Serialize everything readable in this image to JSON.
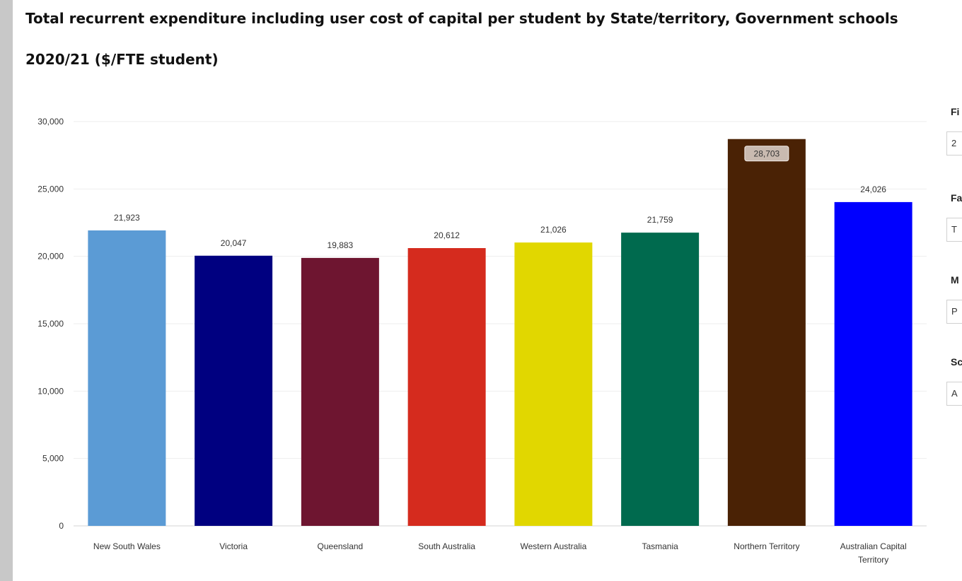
{
  "title_line1": "Total recurrent expenditure including user cost of capital per student by State/territory, Government schools",
  "title_line2": "2020/21 ($/FTE student)",
  "chart_data": {
    "type": "bar",
    "title": "Total recurrent expenditure including user cost of capital per student by State/territory, Government schools 2020/21 ($/FTE student)",
    "xlabel": "",
    "ylabel": "",
    "categories": [
      [
        "New South Wales"
      ],
      [
        "Victoria"
      ],
      [
        "Queensland"
      ],
      [
        "South Australia"
      ],
      [
        "Western Australia"
      ],
      [
        "Tasmania"
      ],
      [
        "Northern Territory"
      ],
      [
        "Australian Capital",
        "Territory"
      ]
    ],
    "values": [
      21923,
      20047,
      19883,
      20612,
      21026,
      21759,
      28703,
      24026
    ],
    "data_labels": [
      "21,923",
      "20,047",
      "19,883",
      "20,612",
      "21,026",
      "21,759",
      "28,703",
      "24,026"
    ],
    "colors": [
      "#5b9bd5",
      "#000080",
      "#6e1530",
      "#d52b1e",
      "#e1d700",
      "#006a4e",
      "#4a2205",
      "#0000ff"
    ],
    "highlighted_index": 6,
    "ylim": [
      0,
      30000
    ],
    "yticks": [
      0,
      5000,
      10000,
      15000,
      20000,
      25000,
      30000
    ],
    "ytick_labels": [
      "0",
      "5,000",
      "10,000",
      "15,000",
      "20,000",
      "25,000",
      "30,000"
    ],
    "grid": true,
    "legend": "none"
  },
  "filters": [
    {
      "label": "Fi",
      "value": "2"
    },
    {
      "label": "Fa",
      "value": "T"
    },
    {
      "label": "M",
      "value": "P"
    },
    {
      "label": "Sc",
      "value": "A"
    }
  ]
}
